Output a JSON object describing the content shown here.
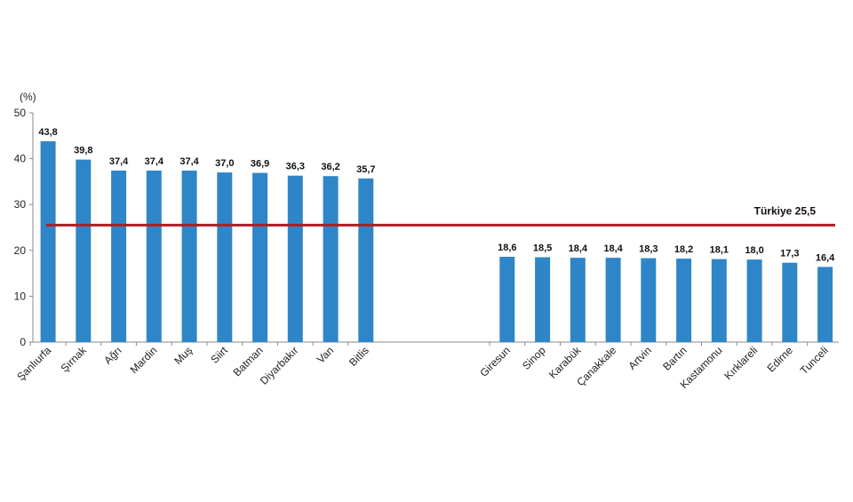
{
  "chart_data": {
    "type": "bar",
    "ylabel": "(%)",
    "ylim": [
      0,
      50
    ],
    "yticks": [
      0,
      10,
      20,
      30,
      40,
      50
    ],
    "grid": false,
    "legend": "none",
    "bar_color": "#2E86C8",
    "reference_line": {
      "label": "Türkiye  25,5",
      "value": 25.5,
      "color": "#B01C24"
    },
    "groups": [
      {
        "categories": [
          "Şanlıurfa",
          "Şırnak",
          "Ağrı",
          "Mardin",
          "Muş",
          "Siirt",
          "Batman",
          "Diyarbakır",
          "Van",
          "Bitlis"
        ],
        "values": [
          43.8,
          39.8,
          37.4,
          37.4,
          37.4,
          37.0,
          36.9,
          36.3,
          36.2,
          35.7
        ],
        "labels": [
          "43,8",
          "39,8",
          "37,4",
          "37,4",
          "37,4",
          "37,0",
          "36,9",
          "36,3",
          "36,2",
          "35,7"
        ]
      },
      {
        "categories": [
          "Giresun",
          "Sinop",
          "Karabük",
          "Çanakkale",
          "Artvin",
          "Bartın",
          "Kastamonu",
          "Kırklareli",
          "Edirne",
          "Tunceli"
        ],
        "values": [
          18.6,
          18.5,
          18.4,
          18.4,
          18.3,
          18.2,
          18.1,
          18.0,
          17.3,
          16.4
        ],
        "labels": [
          "18,6",
          "18,5",
          "18,4",
          "18,4",
          "18,3",
          "18,2",
          "18,1",
          "18,0",
          "17,3",
          "16,4"
        ]
      }
    ]
  }
}
